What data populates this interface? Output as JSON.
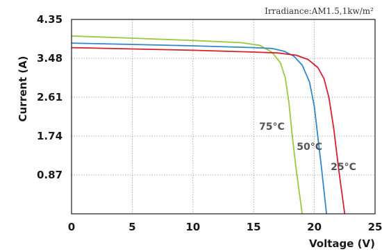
{
  "chart_data": {
    "type": "line",
    "title": "",
    "annotation": "Irradiance:AM1.5,1kw/m²",
    "xlabel": "Voltage (V)",
    "ylabel": "Current (A)",
    "xlim": [
      0,
      25
    ],
    "ylim": [
      0,
      4.35
    ],
    "xticks": [
      0,
      5,
      10,
      15,
      20,
      25
    ],
    "yticks": [
      0.87,
      1.74,
      2.61,
      3.48,
      4.35
    ],
    "xtick_labels": [
      "0",
      "5",
      "10",
      "15",
      "20",
      "25"
    ],
    "ytick_labels": [
      "0.87",
      "1.74",
      "2.61",
      "3.48",
      "4.35"
    ],
    "grid": true,
    "series": [
      {
        "name": "75°C",
        "color": "#9bc93c",
        "x": [
          0,
          5,
          10,
          14,
          15.5,
          16.5,
          17.2,
          17.6,
          17.9,
          18.2,
          18.5,
          19.0
        ],
        "y": [
          3.98,
          3.93,
          3.88,
          3.83,
          3.77,
          3.62,
          3.38,
          3.05,
          2.5,
          1.7,
          1.0,
          0
        ]
      },
      {
        "name": "50°C",
        "color": "#2f86c9",
        "x": [
          0,
          5,
          10,
          15,
          16.5,
          17.5,
          18.3,
          19.0,
          19.6,
          20.0,
          20.3,
          20.6,
          21.0
        ],
        "y": [
          3.82,
          3.79,
          3.76,
          3.72,
          3.7,
          3.64,
          3.53,
          3.33,
          2.95,
          2.4,
          1.7,
          1.0,
          0
        ]
      },
      {
        "name": "25°C",
        "color": "#d81e2c",
        "x": [
          0,
          5,
          10,
          15,
          17,
          18.5,
          19.5,
          20.3,
          20.8,
          21.2,
          21.6,
          22.0,
          22.5
        ],
        "y": [
          3.72,
          3.69,
          3.66,
          3.62,
          3.6,
          3.55,
          3.45,
          3.27,
          3.02,
          2.6,
          1.9,
          1.0,
          0
        ]
      }
    ]
  }
}
